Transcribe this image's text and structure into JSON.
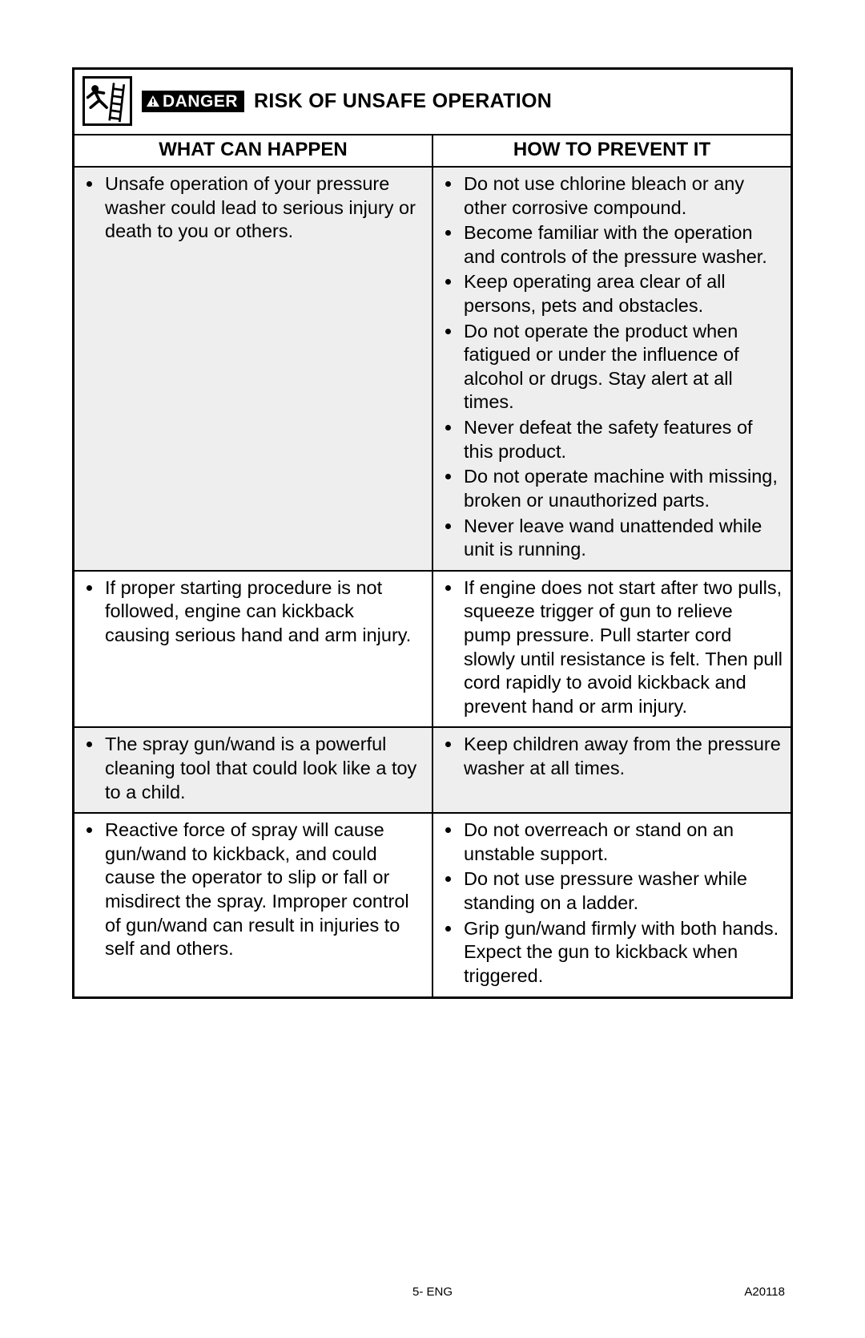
{
  "colors": {
    "page_bg": "#ffffff",
    "text": "#000000",
    "border": "#000000",
    "shaded_row_bg": "#eeeeee",
    "danger_badge_bg": "#000000",
    "danger_badge_text": "#ffffff"
  },
  "typography": {
    "base_font": "Helvetica, Arial, sans-serif",
    "body_fontsize_pt": 18,
    "header_fontsize_pt": 18,
    "title_fontsize_pt": 19,
    "footer_fontsize_pt": 11
  },
  "title": {
    "danger_label": "DANGER",
    "heading": "RISK OF UNSAFE OPERATION",
    "icon_name": "falling-person-ladder-icon"
  },
  "table": {
    "type": "table",
    "columns": [
      "WHAT CAN HAPPEN",
      "HOW TO PREVENT IT"
    ],
    "column_widths_pct": [
      50,
      50
    ],
    "rows": [
      {
        "shaded": true,
        "left": [
          "Unsafe operation of your pressure washer could lead to serious injury or death to you or others."
        ],
        "right": [
          "Do not use chlorine bleach or any other corrosive compound.",
          "Become familiar with the operation and controls of the pressure washer.",
          "Keep operating area clear of all persons, pets and obstacles.",
          "Do not operate the product when fatigued or under the influence of alcohol or drugs. Stay alert at all times.",
          "Never defeat the safety features of this product.",
          "Do not operate machine with missing, broken or unauthorized parts.",
          "Never leave wand unattended while unit is running."
        ]
      },
      {
        "shaded": false,
        "left": [
          "If proper starting procedure is not followed, engine can kickback causing serious hand and arm injury."
        ],
        "right": [
          "If engine does not start after two pulls, squeeze trigger of gun to relieve pump pressure. Pull starter cord slowly until resistance is felt. Then pull cord rapidly to avoid kickback and prevent hand or arm injury."
        ]
      },
      {
        "shaded": true,
        "left": [
          "The spray gun/wand is a powerful cleaning tool that could look like a toy to a child."
        ],
        "right": [
          "Keep children away from the pressure washer at all times."
        ]
      },
      {
        "shaded": false,
        "left": [
          "Reactive force of spray will cause gun/wand to kickback, and could cause the operator to slip or fall or misdirect the spray. Improper control of gun/wand can result in injuries to self and others."
        ],
        "right": [
          "Do not overreach or stand on an unstable support.",
          "Do not use pressure washer while standing on a ladder.",
          "Grip gun/wand firmly with both hands. Expect the gun to kickback when triggered."
        ]
      }
    ]
  },
  "footer": {
    "center": "5- ENG",
    "right": "A20118"
  }
}
